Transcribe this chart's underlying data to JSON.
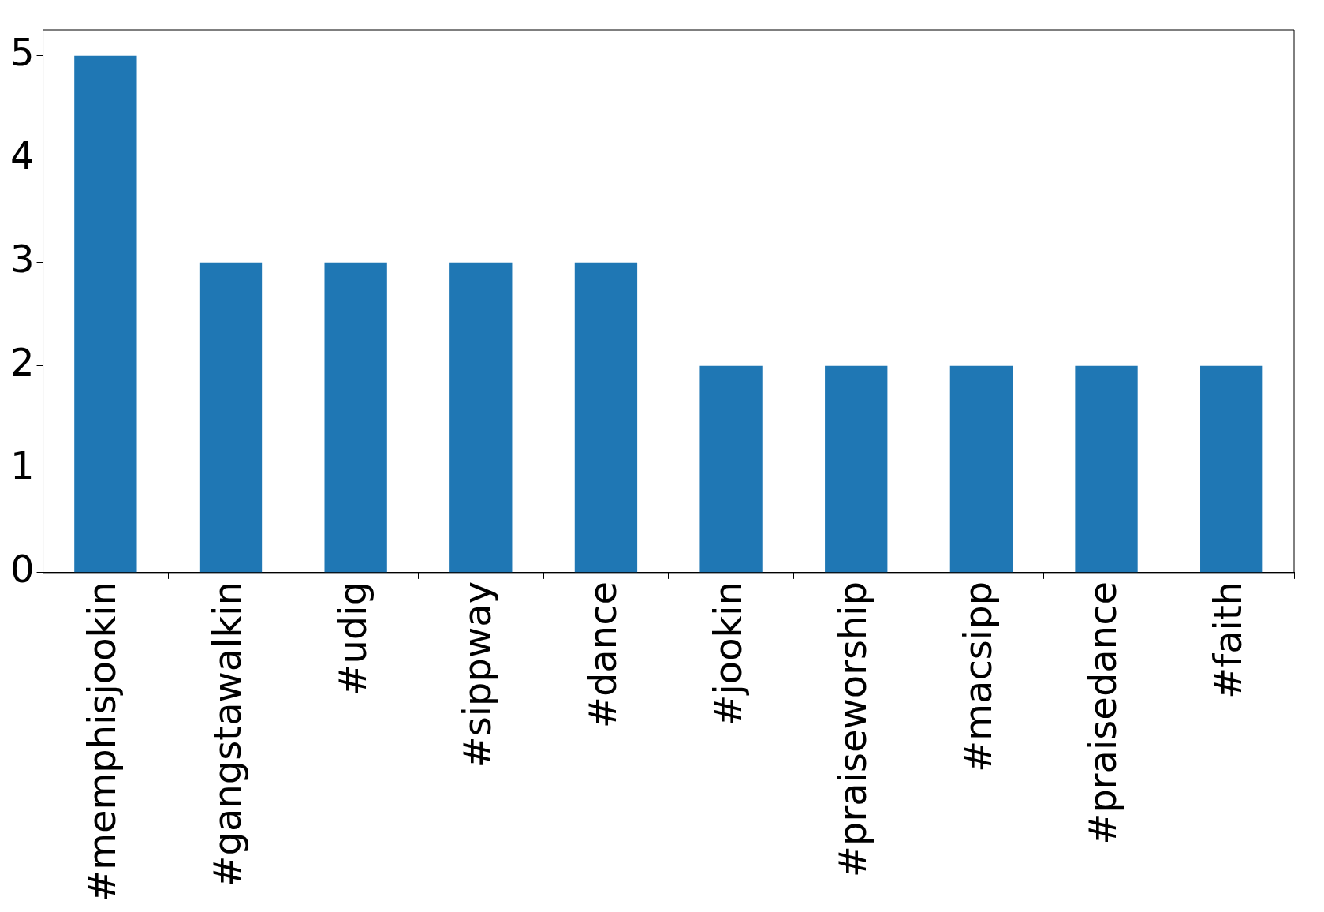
{
  "chart_data": {
    "type": "bar",
    "categories": [
      "#memphisjookin",
      "#gangstawalkin",
      "#udig",
      "#sippway",
      "#dance",
      "#jookin",
      "#praiseworship",
      "#macsipp",
      "#praisedance",
      "#faith"
    ],
    "values": [
      5,
      3,
      3,
      3,
      3,
      2,
      2,
      2,
      2,
      2
    ],
    "color": "#1f77b4",
    "ylim": [
      0,
      5.25
    ],
    "yticks": [
      0,
      1,
      2,
      3,
      4,
      5
    ],
    "grid": false,
    "legend": false
  }
}
